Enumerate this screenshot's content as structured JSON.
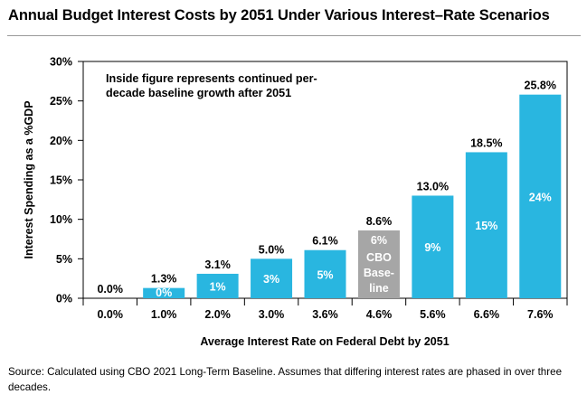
{
  "title": "Annual Budget Interest Costs by 2051 Under Various Interest–Rate Scenarios",
  "note": "Inside figure represents continued per-decade baseline growth after 2051",
  "source": "Source: Calculated using CBO 2021 Long-Term Baseline. Assumes that differing interest rates are phased in over three decades.",
  "chart_data": {
    "type": "bar",
    "title": "Annual Budget Interest Costs by 2051 Under Various Interest–Rate Scenarios",
    "xlabel": "Average Interest Rate on Federal Debt by 2051",
    "ylabel": "Interest Spending as a %GDP",
    "ylim": [
      0,
      30
    ],
    "yticks": [
      "0%",
      "5%",
      "10%",
      "15%",
      "20%",
      "25%",
      "30%"
    ],
    "categories": [
      "0.0%",
      "1.0%",
      "2.0%",
      "3.0%",
      "3.6%",
      "4.6%",
      "5.6%",
      "6.6%",
      "7.6%"
    ],
    "values": [
      0.0,
      1.3,
      3.1,
      5.0,
      6.1,
      8.6,
      13.0,
      18.5,
      25.8
    ],
    "value_labels": [
      "0.0%",
      "1.3%",
      "3.1%",
      "5.0%",
      "6.1%",
      "8.6%",
      "13.0%",
      "18.5%",
      "25.8%"
    ],
    "inside_labels": [
      "",
      "0%",
      "1%",
      "3%",
      "5%",
      "6%",
      "9%",
      "15%",
      "24%"
    ],
    "baseline_label": [
      "CBO",
      "Base-",
      "line"
    ],
    "baseline_index": 5,
    "grid": false,
    "colors": {
      "bar": "#29b6e0",
      "baseline": "#a6a6a6",
      "inside_text": "#ffffff"
    }
  }
}
